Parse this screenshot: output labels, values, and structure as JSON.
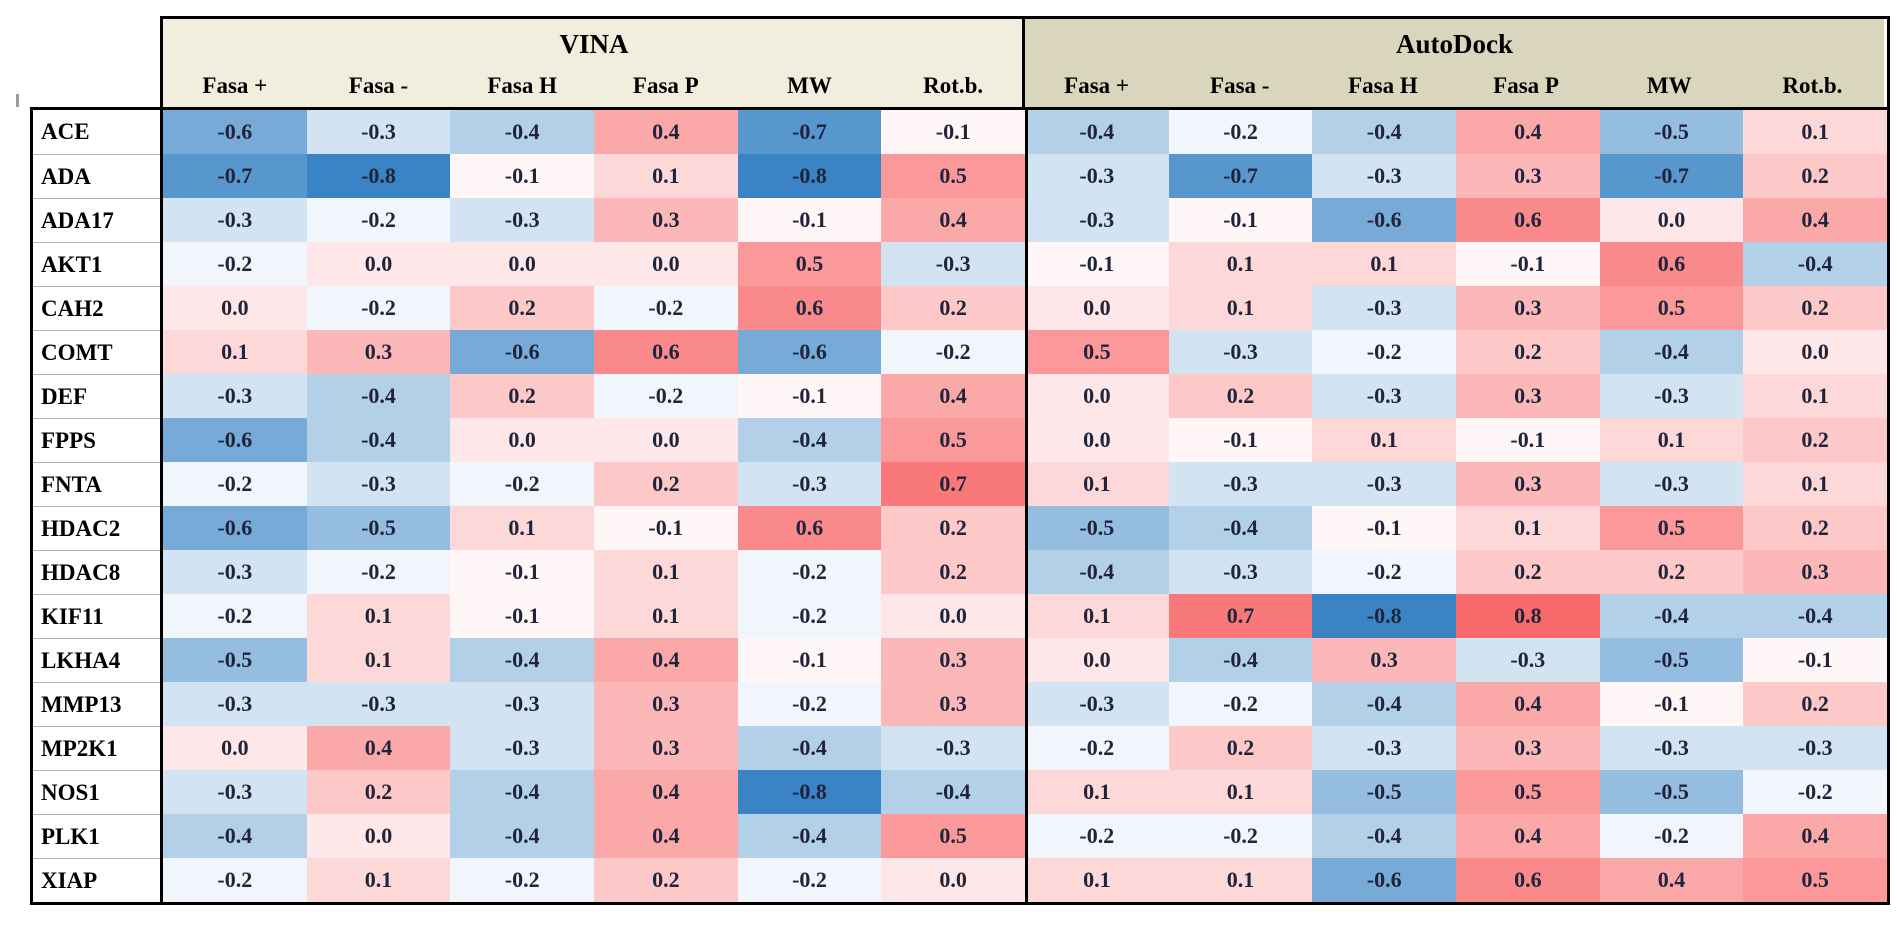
{
  "chart_data": {
    "type": "heatmap",
    "title": "",
    "groups": [
      {
        "label": "VINA",
        "header_bg": "#f1eedd"
      },
      {
        "label": "AutoDock",
        "header_bg": "#dad6be"
      }
    ],
    "metrics": [
      "Fasa +",
      "Fasa -",
      "Fasa H",
      "Fasa P",
      "MW",
      "Rot.b."
    ],
    "targets": [
      "ACE",
      "ADA",
      "ADA17",
      "AKT1",
      "CAH2",
      "COMT",
      "DEF",
      "FPPS",
      "FNTA",
      "HDAC2",
      "HDAC8",
      "KIF11",
      "LKHA4",
      "MMP13",
      "MP2K1",
      "NOS1",
      "PLK1",
      "XIAP"
    ],
    "series": [
      {
        "name": "VINA",
        "values": [
          [
            -0.6,
            -0.3,
            -0.4,
            0.4,
            -0.7,
            -0.1
          ],
          [
            -0.7,
            -0.8,
            -0.1,
            0.1,
            -0.8,
            0.5
          ],
          [
            -0.3,
            -0.2,
            -0.3,
            0.3,
            -0.1,
            0.4
          ],
          [
            -0.2,
            0.0,
            0.0,
            0.0,
            0.5,
            -0.3
          ],
          [
            0.0,
            -0.2,
            0.2,
            -0.2,
            0.6,
            0.2
          ],
          [
            0.1,
            0.3,
            -0.6,
            0.6,
            -0.6,
            -0.2
          ],
          [
            -0.3,
            -0.4,
            0.2,
            -0.2,
            -0.1,
            0.4
          ],
          [
            -0.6,
            -0.4,
            0.0,
            0.0,
            -0.4,
            0.5
          ],
          [
            -0.2,
            -0.3,
            -0.2,
            0.2,
            -0.3,
            0.7
          ],
          [
            -0.6,
            -0.5,
            0.1,
            -0.1,
            0.6,
            0.2
          ],
          [
            -0.3,
            -0.2,
            -0.1,
            0.1,
            -0.2,
            0.2
          ],
          [
            -0.2,
            0.1,
            -0.1,
            0.1,
            -0.2,
            0.0
          ],
          [
            -0.5,
            0.1,
            -0.4,
            0.4,
            -0.1,
            0.3
          ],
          [
            -0.3,
            -0.3,
            -0.3,
            0.3,
            -0.2,
            0.3
          ],
          [
            0.0,
            0.4,
            -0.3,
            0.3,
            -0.4,
            -0.3
          ],
          [
            -0.3,
            0.2,
            -0.4,
            0.4,
            -0.8,
            -0.4
          ],
          [
            -0.4,
            0.0,
            -0.4,
            0.4,
            -0.4,
            0.5
          ],
          [
            -0.2,
            0.1,
            -0.2,
            0.2,
            -0.2,
            0.0
          ]
        ]
      },
      {
        "name": "AutoDock",
        "values": [
          [
            -0.4,
            -0.2,
            -0.4,
            0.4,
            -0.5,
            0.1
          ],
          [
            -0.3,
            -0.7,
            -0.3,
            0.3,
            -0.7,
            0.2
          ],
          [
            -0.3,
            -0.1,
            -0.6,
            0.6,
            0.0,
            0.4
          ],
          [
            -0.1,
            0.1,
            0.1,
            -0.1,
            0.6,
            -0.4
          ],
          [
            0.0,
            0.1,
            -0.3,
            0.3,
            0.5,
            0.2
          ],
          [
            0.5,
            -0.3,
            -0.2,
            0.2,
            -0.4,
            0.0
          ],
          [
            0.0,
            0.2,
            -0.3,
            0.3,
            -0.3,
            0.1
          ],
          [
            0.0,
            -0.1,
            0.1,
            -0.1,
            0.1,
            0.2
          ],
          [
            0.1,
            -0.3,
            -0.3,
            0.3,
            -0.3,
            0.1
          ],
          [
            -0.5,
            -0.4,
            -0.1,
            0.1,
            0.5,
            0.2
          ],
          [
            -0.4,
            -0.3,
            -0.2,
            0.2,
            0.2,
            0.3
          ],
          [
            0.1,
            0.7,
            -0.8,
            0.8,
            -0.4,
            -0.4
          ],
          [
            0.0,
            -0.4,
            0.3,
            -0.3,
            -0.5,
            -0.1
          ],
          [
            -0.3,
            -0.2,
            -0.4,
            0.4,
            -0.1,
            0.2
          ],
          [
            -0.2,
            0.2,
            -0.3,
            0.3,
            -0.3,
            -0.3
          ],
          [
            0.1,
            0.1,
            -0.5,
            0.5,
            -0.5,
            -0.2
          ],
          [
            -0.2,
            -0.2,
            -0.4,
            0.4,
            -0.2,
            0.4
          ],
          [
            0.1,
            0.1,
            -0.6,
            0.6,
            0.4,
            0.5
          ]
        ]
      }
    ],
    "value_range": [
      -0.8,
      0.8
    ],
    "value_format": "one_decimal",
    "color_scale": {
      "min": -0.8,
      "mid": -0.15,
      "max": 0.8,
      "min_color": "#3a84c5",
      "mid_color": "#ffffff",
      "max_color": "#f8696b"
    },
    "layout": {
      "grid": "off",
      "legend": "none",
      "row_label_column": true
    }
  }
}
